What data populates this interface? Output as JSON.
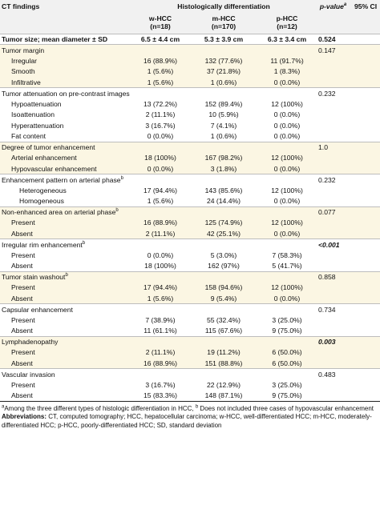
{
  "header": {
    "col_findings": "CT findings",
    "col_group": "Histologically differentiation",
    "col_pvalue": "p-value",
    "col_pvalue_sup": "a",
    "col_ci": "95% CI",
    "groups": [
      {
        "name": "w-HCC",
        "n": "(n=18)"
      },
      {
        "name": "m-HCC",
        "n": "(n=170)"
      },
      {
        "name": "p-HCC",
        "n": "(n=12)"
      }
    ]
  },
  "rows": [
    {
      "label": "Tumor size; mean diameter ± SD",
      "w": "6.5 ± 4.4 cm",
      "m": "5.3 ± 3.9 cm",
      "p": "6.3 ± 3.4 cm",
      "pv": "0.524",
      "ci": "",
      "level": 0,
      "bold": true,
      "shade": false,
      "start": true
    },
    {
      "label": "Tumor margin",
      "w": "",
      "m": "",
      "p": "",
      "pv": "0.147",
      "ci": "",
      "level": 0,
      "shade": true,
      "start": true
    },
    {
      "label": "Irregular",
      "w": "16 (88.9%)",
      "m": "132 (77.6%)",
      "p": "11 (91.7%)",
      "pv": "",
      "ci": "",
      "level": 1,
      "shade": true
    },
    {
      "label": "Smooth",
      "w": "1 (5.6%)",
      "m": "37 (21.8%)",
      "p": "1 (8.3%)",
      "pv": "",
      "ci": "",
      "level": 1,
      "shade": true
    },
    {
      "label": "Infiltrative",
      "w": "1 (5.6%)",
      "m": "1 (0.6%)",
      "p": "0 (0.0%)",
      "pv": "",
      "ci": "",
      "level": 1,
      "shade": true
    },
    {
      "label": "Tumor attenuation on pre-contrast images",
      "w": "",
      "m": "",
      "p": "",
      "pv": "0.232",
      "ci": "",
      "level": 0,
      "shade": false,
      "start": true
    },
    {
      "label": "Hypoattenuation",
      "w": "13 (72.2%)",
      "m": "152 (89.4%)",
      "p": "12 (100%)",
      "pv": "",
      "ci": "",
      "level": 1,
      "shade": false
    },
    {
      "label": "Isoattenuation",
      "w": "2 (11.1%)",
      "m": "10 (5.9%)",
      "p": "0 (0.0%)",
      "pv": "",
      "ci": "",
      "level": 1,
      "shade": false
    },
    {
      "label": "Hyperattenuation",
      "w": "3 (16.7%)",
      "m": "7 (4.1%)",
      "p": "0 (0.0%)",
      "pv": "",
      "ci": "",
      "level": 1,
      "shade": false
    },
    {
      "label": "Fat content",
      "w": "0 (0.0%)",
      "m": "1 (0.6%)",
      "p": "0 (0.0%)",
      "pv": "",
      "ci": "",
      "level": 1,
      "shade": false
    },
    {
      "label": "Degree of tumor enhancement",
      "w": "",
      "m": "",
      "p": "",
      "pv": "1.0",
      "ci": "",
      "level": 0,
      "shade": true,
      "start": true
    },
    {
      "label": "Arterial enhancement",
      "w": "18 (100%)",
      "m": "167 (98.2%)",
      "p": "12 (100%)",
      "pv": "",
      "ci": "",
      "level": 1,
      "shade": true
    },
    {
      "label": "Hypovascular enhancement",
      "w": "0 (0.0%)",
      "m": "3 (1.8%)",
      "p": "0 (0.0%)",
      "pv": "",
      "ci": "",
      "level": 1,
      "shade": true
    },
    {
      "label": "Enhancement pattern on arterial phase",
      "sup": "b",
      "w": "",
      "m": "",
      "p": "",
      "pv": "0.232",
      "ci": "",
      "level": 0,
      "shade": false,
      "start": true
    },
    {
      "label": "Heterogeneous",
      "w": "17 (94.4%)",
      "m": "143 (85.6%)",
      "p": "12 (100%)",
      "pv": "",
      "ci": "",
      "level": 2,
      "shade": false
    },
    {
      "label": "Homogeneous",
      "w": "1 (5.6%)",
      "m": "24 (14.4%)",
      "p": "0 (0.0%)",
      "pv": "",
      "ci": "",
      "level": 2,
      "shade": false
    },
    {
      "label": "Non-enhanced area on arterial phase",
      "sup": "b",
      "w": "",
      "m": "",
      "p": "",
      "pv": "0.077",
      "ci": "",
      "level": 0,
      "shade": true,
      "start": true
    },
    {
      "label": "Present",
      "w": "16 (88.9%)",
      "m": "125 (74.9%)",
      "p": "12 (100%)",
      "pv": "",
      "ci": "",
      "level": 1,
      "shade": true
    },
    {
      "label": "Absent",
      "w": "2 (11.1%)",
      "m": "42 (25.1%)",
      "p": "0 (0.0%)",
      "pv": "",
      "ci": "",
      "level": 1,
      "shade": true
    },
    {
      "label": "Irregular rim enhancement",
      "sup": "b",
      "w": "",
      "m": "",
      "p": "",
      "pv": "<0.001",
      "pv_bold": true,
      "ci": "",
      "level": 0,
      "shade": false,
      "start": true
    },
    {
      "label": "Present",
      "w": "0 (0.0%)",
      "m": "5 (3.0%)",
      "p": "7 (58.3%)",
      "pv": "",
      "ci": "",
      "level": 1,
      "shade": false
    },
    {
      "label": "Absent",
      "w": "18 (100%)",
      "m": "162 (97%)",
      "p": "5 (41.7%)",
      "pv": "",
      "ci": "",
      "level": 1,
      "shade": false
    },
    {
      "label": "Tumor stain washout",
      "sup": "b",
      "w": "",
      "m": "",
      "p": "",
      "pv": "0.858",
      "ci": "",
      "level": 0,
      "shade": true,
      "start": true
    },
    {
      "label": "Present",
      "w": "17 (94.4%)",
      "m": "158 (94.6%)",
      "p": "12 (100%)",
      "pv": "",
      "ci": "",
      "level": 1,
      "shade": true
    },
    {
      "label": "Absent",
      "w": "1 (5.6%)",
      "m": "9 (5.4%)",
      "p": "0 (0.0%)",
      "pv": "",
      "ci": "",
      "level": 1,
      "shade": true
    },
    {
      "label": "Capsular enhancement",
      "w": "",
      "m": "",
      "p": "",
      "pv": "0.734",
      "ci": "",
      "level": 0,
      "shade": false,
      "start": true
    },
    {
      "label": "Present",
      "w": "7 (38.9%)",
      "m": "55 (32.4%)",
      "p": "3 (25.0%)",
      "pv": "",
      "ci": "",
      "level": 1,
      "shade": false
    },
    {
      "label": "Absent",
      "w": "11 (61.1%)",
      "m": "115 (67.6%)",
      "p": "9 (75.0%)",
      "pv": "",
      "ci": "",
      "level": 1,
      "shade": false
    },
    {
      "label": "Lymphadenopathy",
      "w": "",
      "m": "",
      "p": "",
      "pv": "0.003",
      "pv_bold": true,
      "ci": "",
      "level": 0,
      "shade": true,
      "start": true
    },
    {
      "label": "Present",
      "w": "2 (11.1%)",
      "m": "19 (11.2%)",
      "p": "6 (50.0%)",
      "pv": "",
      "ci": "",
      "level": 1,
      "shade": true
    },
    {
      "label": "Absent",
      "w": "16 (88.9%)",
      "m": "151 (88.8%)",
      "p": "6 (50.0%)",
      "pv": "",
      "ci": "",
      "level": 1,
      "shade": true
    },
    {
      "label": "Vascular invasion",
      "w": "",
      "m": "",
      "p": "",
      "pv": "0.483",
      "ci": "",
      "level": 0,
      "shade": false,
      "start": true
    },
    {
      "label": "Present",
      "w": "3 (16.7%)",
      "m": "22 (12.9%)",
      "p": "3 (25.0%)",
      "pv": "",
      "ci": "",
      "level": 1,
      "shade": false
    },
    {
      "label": "Absent",
      "w": "15 (83.3%)",
      "m": "148 (87.1%)",
      "p": "9 (75.0%)",
      "pv": "",
      "ci": "",
      "level": 1,
      "shade": false
    }
  ],
  "footnote": {
    "a_sup": "a",
    "a_text": "Among the three different types of histologic differentiation in HCC, ",
    "b_sup": "b",
    "b_text": " Does not included three cases of hypovascular enhancement",
    "abbr_label": "Abbreviations:",
    "abbr_text": " CT, computed tomography; HCC, hepatocellular carcinoma; w-HCC, well-differentiated HCC; m-HCC, moderately-differentiated HCC; p-HCC, poorly-differentiated HCC; SD, standard deviation"
  }
}
